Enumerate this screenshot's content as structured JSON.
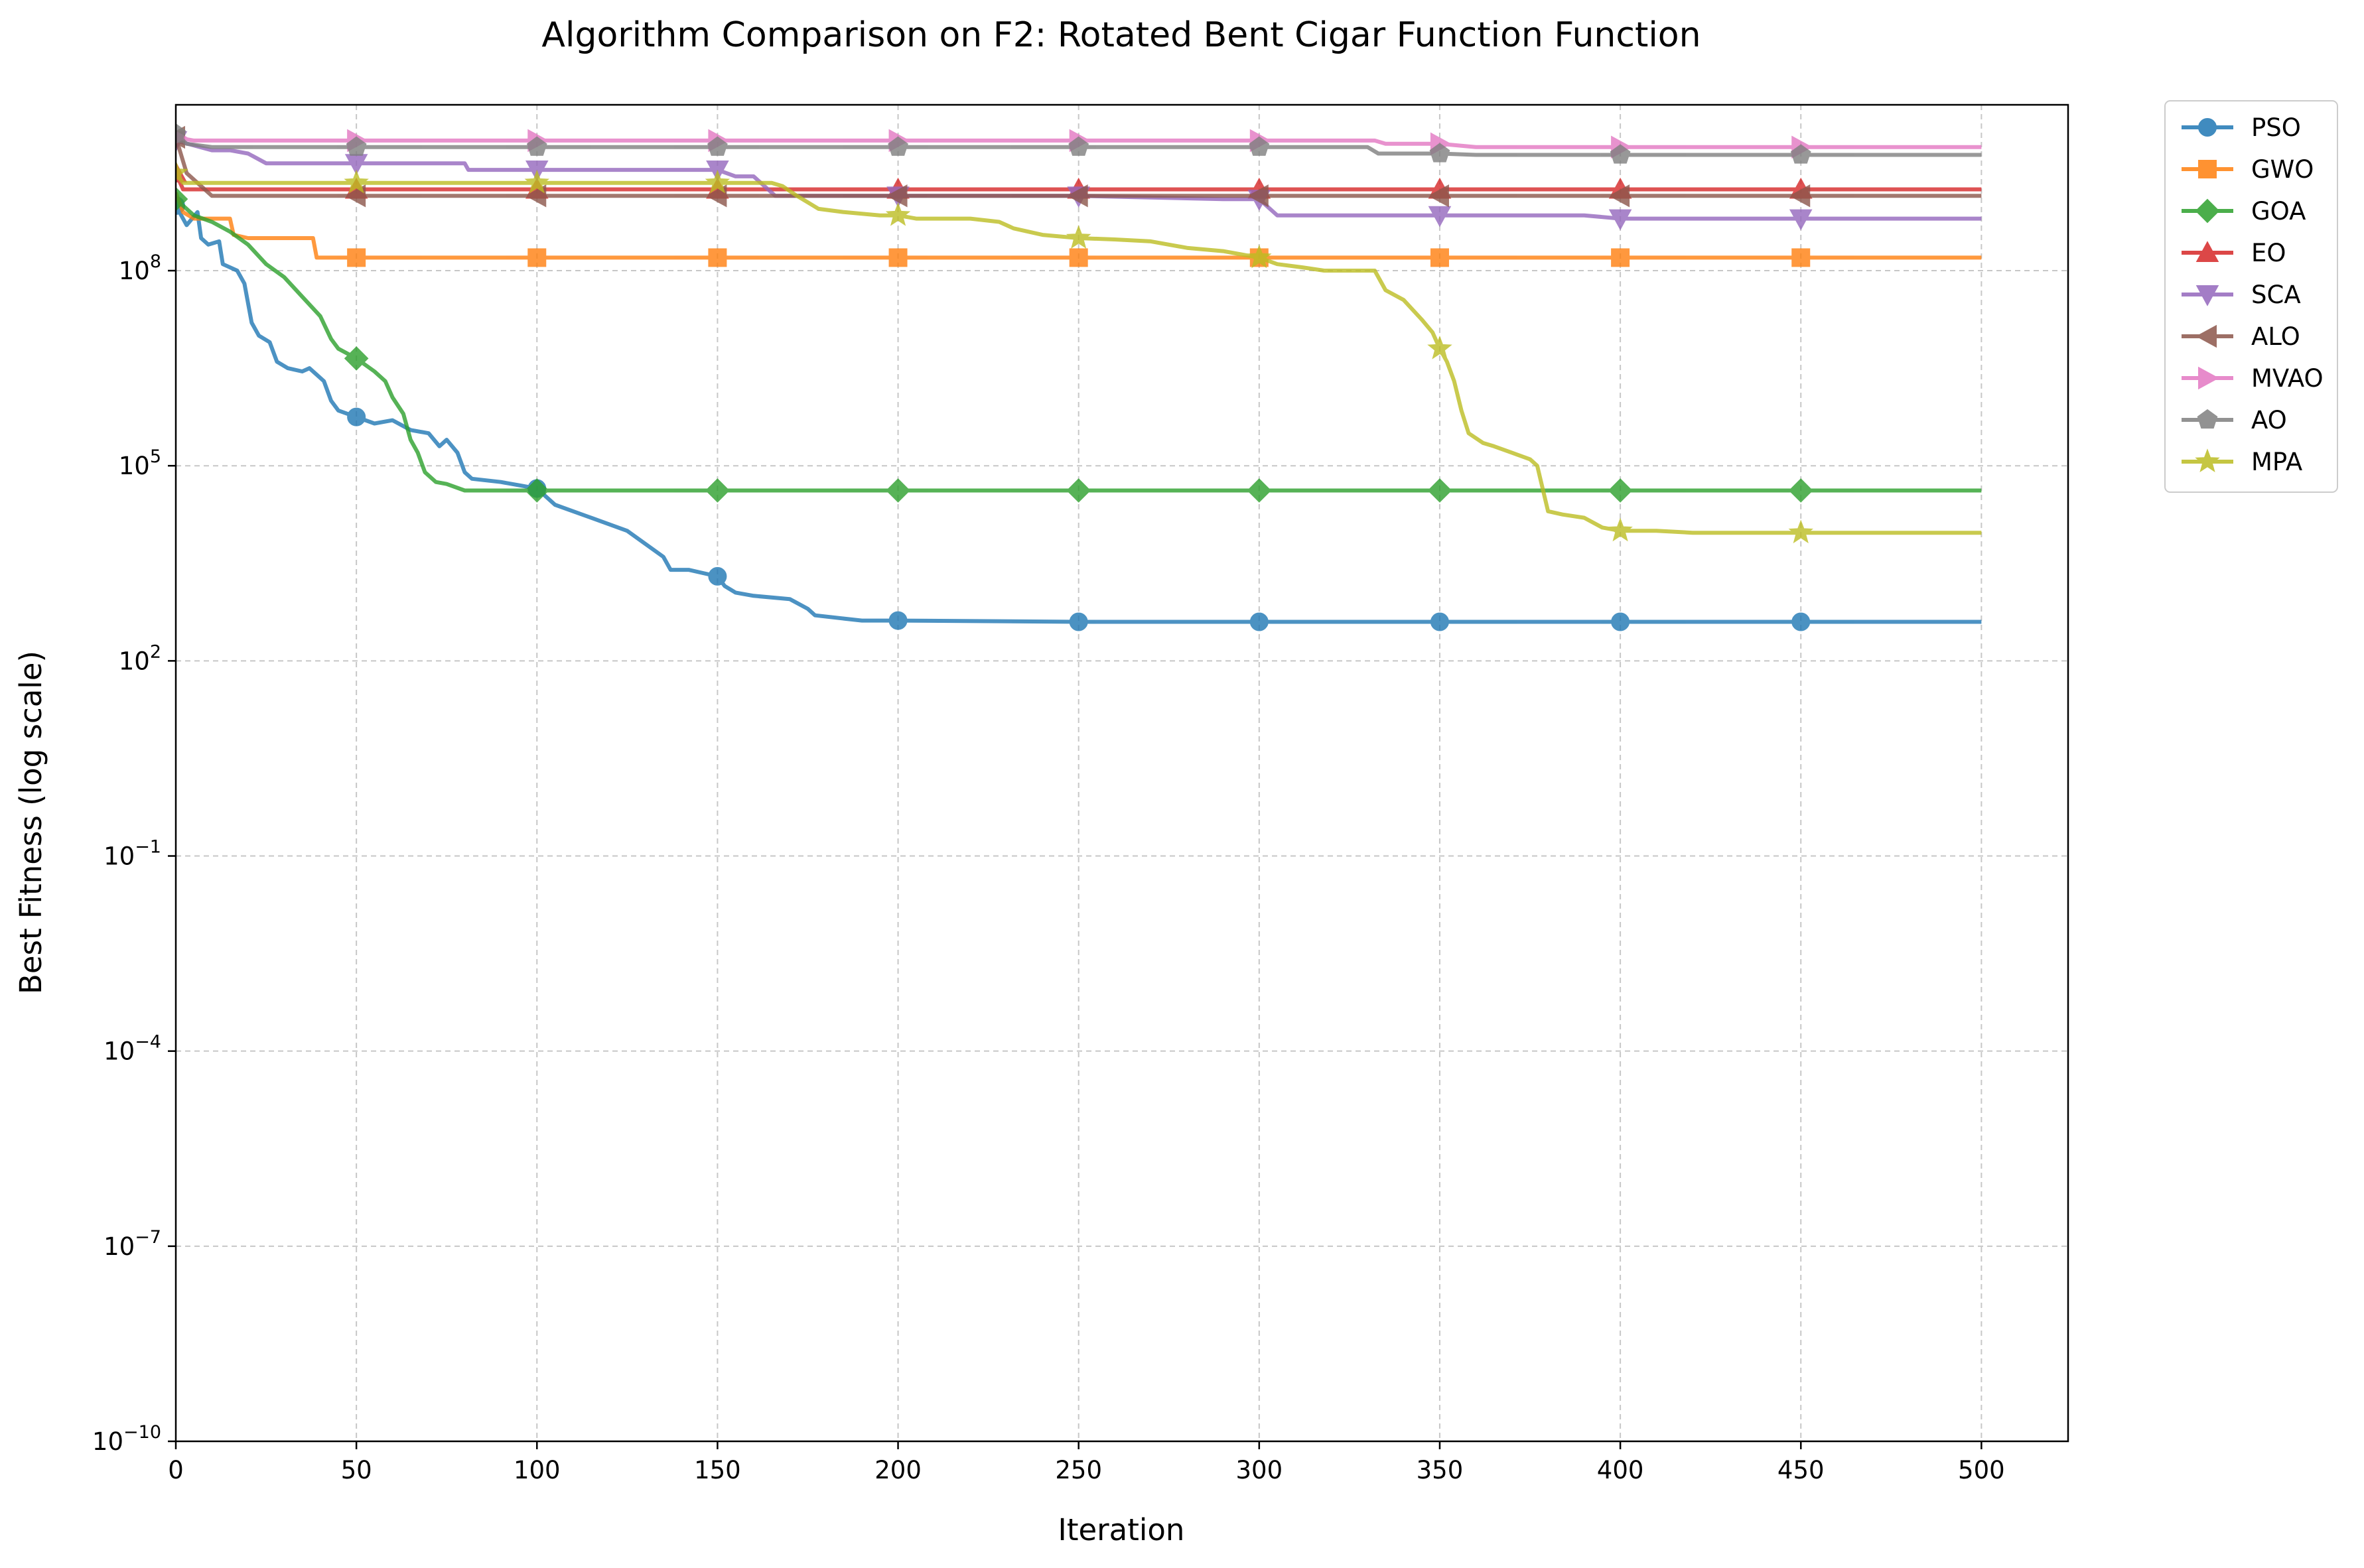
{
  "chart_data": {
    "type": "line",
    "title": "Algorithm Comparison on F2: Rotated Bent Cigar Function Function",
    "xlabel": "Iteration",
    "ylabel": "Best Fitness (log scale)",
    "xlim": [
      0,
      524
    ],
    "xticks": [
      0,
      50,
      100,
      150,
      200,
      250,
      300,
      350,
      400,
      450,
      500
    ],
    "y_scale": "log",
    "ylim_log10": [
      -10,
      10.55
    ],
    "yticks_log10": [
      -10,
      -7,
      -4,
      -1,
      2,
      5,
      8
    ],
    "grid": true,
    "legend_position": "outside-top-right",
    "series": [
      {
        "name": "PSO",
        "color": "#1f77b4",
        "marker": "circle",
        "points": [
          [
            0,
            9.0
          ],
          [
            3,
            8.7
          ],
          [
            6,
            8.9
          ],
          [
            7,
            8.5
          ],
          [
            9,
            8.4
          ],
          [
            12,
            8.45
          ],
          [
            13,
            8.1
          ],
          [
            17,
            8.0
          ],
          [
            19,
            7.8
          ],
          [
            21,
            7.2
          ],
          [
            23,
            7.0
          ],
          [
            26,
            6.9
          ],
          [
            28,
            6.6
          ],
          [
            31,
            6.5
          ],
          [
            35,
            6.45
          ],
          [
            37,
            6.5
          ],
          [
            39,
            6.4
          ],
          [
            41,
            6.3
          ],
          [
            43,
            6.0
          ],
          [
            45,
            5.85
          ],
          [
            50,
            5.75
          ],
          [
            55,
            5.65
          ],
          [
            60,
            5.7
          ],
          [
            65,
            5.55
          ],
          [
            70,
            5.5
          ],
          [
            73,
            5.3
          ],
          [
            75,
            5.4
          ],
          [
            78,
            5.2
          ],
          [
            80,
            4.9
          ],
          [
            82,
            4.8
          ],
          [
            90,
            4.75
          ],
          [
            95,
            4.7
          ],
          [
            100,
            4.65
          ],
          [
            105,
            4.4
          ],
          [
            110,
            4.3
          ],
          [
            115,
            4.2
          ],
          [
            120,
            4.1
          ],
          [
            125,
            4.0
          ],
          [
            130,
            3.8
          ],
          [
            135,
            3.6
          ],
          [
            137,
            3.4
          ],
          [
            142,
            3.4
          ],
          [
            146,
            3.35
          ],
          [
            150,
            3.3
          ],
          [
            152,
            3.15
          ],
          [
            155,
            3.05
          ],
          [
            160,
            3.0
          ],
          [
            170,
            2.95
          ],
          [
            175,
            2.8
          ],
          [
            177,
            2.7
          ],
          [
            185,
            2.65
          ],
          [
            190,
            2.62
          ],
          [
            195,
            2.62
          ],
          [
            200,
            2.62
          ],
          [
            250,
            2.6
          ],
          [
            300,
            2.6
          ],
          [
            350,
            2.6
          ],
          [
            400,
            2.6
          ],
          [
            450,
            2.6
          ],
          [
            500,
            2.6
          ]
        ],
        "marker_points": [
          [
            0,
            9.0
          ],
          [
            50,
            5.75
          ],
          [
            100,
            4.65
          ],
          [
            150,
            3.3
          ],
          [
            200,
            2.62
          ],
          [
            250,
            2.6
          ],
          [
            300,
            2.6
          ],
          [
            350,
            2.6
          ],
          [
            400,
            2.6
          ],
          [
            450,
            2.6
          ]
        ]
      },
      {
        "name": "GWO",
        "color": "#ff7f0e",
        "marker": "square",
        "points": [
          [
            0,
            9.2
          ],
          [
            2,
            8.9
          ],
          [
            5,
            8.8
          ],
          [
            10,
            8.8
          ],
          [
            15,
            8.8
          ],
          [
            16,
            8.55
          ],
          [
            20,
            8.5
          ],
          [
            30,
            8.5
          ],
          [
            38,
            8.5
          ],
          [
            39,
            8.2
          ],
          [
            40,
            8.2
          ],
          [
            100,
            8.2
          ],
          [
            200,
            8.2
          ],
          [
            300,
            8.2
          ],
          [
            400,
            8.2
          ],
          [
            500,
            8.2
          ]
        ],
        "marker_points": [
          [
            50,
            8.2
          ],
          [
            100,
            8.2
          ],
          [
            150,
            8.2
          ],
          [
            200,
            8.2
          ],
          [
            250,
            8.2
          ],
          [
            300,
            8.2
          ],
          [
            350,
            8.2
          ],
          [
            400,
            8.2
          ],
          [
            450,
            8.2
          ]
        ]
      },
      {
        "name": "GOA",
        "color": "#2ca02c",
        "marker": "diamond",
        "points": [
          [
            0,
            9.1
          ],
          [
            5,
            8.85
          ],
          [
            10,
            8.75
          ],
          [
            15,
            8.6
          ],
          [
            20,
            8.4
          ],
          [
            25,
            8.1
          ],
          [
            30,
            7.9
          ],
          [
            35,
            7.6
          ],
          [
            40,
            7.3
          ],
          [
            43,
            6.95
          ],
          [
            45,
            6.8
          ],
          [
            50,
            6.65
          ],
          [
            55,
            6.45
          ],
          [
            58,
            6.3
          ],
          [
            60,
            6.05
          ],
          [
            63,
            5.8
          ],
          [
            65,
            5.4
          ],
          [
            67,
            5.2
          ],
          [
            69,
            4.9
          ],
          [
            72,
            4.75
          ],
          [
            75,
            4.72
          ],
          [
            80,
            4.62
          ],
          [
            90,
            4.62
          ],
          [
            100,
            4.62
          ],
          [
            200,
            4.62
          ],
          [
            300,
            4.62
          ],
          [
            400,
            4.62
          ],
          [
            500,
            4.62
          ]
        ],
        "marker_points": [
          [
            0,
            9.1
          ],
          [
            50,
            6.65
          ],
          [
            100,
            4.62
          ],
          [
            150,
            4.62
          ],
          [
            200,
            4.62
          ],
          [
            250,
            4.62
          ],
          [
            300,
            4.62
          ],
          [
            350,
            4.62
          ],
          [
            400,
            4.62
          ],
          [
            450,
            4.62
          ]
        ]
      },
      {
        "name": "EO",
        "color": "#d62728",
        "marker": "triangle-up",
        "points": [
          [
            0,
            9.5
          ],
          [
            2,
            9.25
          ],
          [
            5,
            9.25
          ],
          [
            100,
            9.25
          ],
          [
            200,
            9.25
          ],
          [
            300,
            9.25
          ],
          [
            400,
            9.25
          ],
          [
            500,
            9.25
          ]
        ],
        "marker_points": [
          [
            0,
            9.5
          ],
          [
            50,
            9.25
          ],
          [
            100,
            9.25
          ],
          [
            150,
            9.25
          ],
          [
            200,
            9.25
          ],
          [
            250,
            9.25
          ],
          [
            300,
            9.25
          ],
          [
            350,
            9.25
          ],
          [
            400,
            9.25
          ],
          [
            450,
            9.25
          ]
        ]
      },
      {
        "name": "SCA",
        "color": "#9467bd",
        "marker": "triangle-down",
        "points": [
          [
            0,
            10.0
          ],
          [
            10,
            9.85
          ],
          [
            15,
            9.85
          ],
          [
            20,
            9.8
          ],
          [
            25,
            9.65
          ],
          [
            80,
            9.65
          ],
          [
            81,
            9.55
          ],
          [
            150,
            9.55
          ],
          [
            155,
            9.45
          ],
          [
            160,
            9.45
          ],
          [
            166,
            9.15
          ],
          [
            250,
            9.15
          ],
          [
            290,
            9.1
          ],
          [
            300,
            9.1
          ],
          [
            305,
            8.85
          ],
          [
            310,
            8.85
          ],
          [
            390,
            8.85
          ],
          [
            400,
            8.8
          ],
          [
            450,
            8.8
          ],
          [
            500,
            8.8
          ]
        ],
        "marker_points": [
          [
            0,
            10.0
          ],
          [
            50,
            9.65
          ],
          [
            100,
            9.55
          ],
          [
            150,
            9.55
          ],
          [
            200,
            9.15
          ],
          [
            250,
            9.15
          ],
          [
            300,
            9.1
          ],
          [
            350,
            8.85
          ],
          [
            400,
            8.8
          ],
          [
            450,
            8.8
          ]
        ]
      },
      {
        "name": "ALO",
        "color": "#8c564b",
        "marker": "triangle-left",
        "points": [
          [
            0,
            10.05
          ],
          [
            3,
            9.5
          ],
          [
            8,
            9.25
          ],
          [
            10,
            9.15
          ],
          [
            100,
            9.15
          ],
          [
            200,
            9.15
          ],
          [
            300,
            9.15
          ],
          [
            400,
            9.15
          ],
          [
            500,
            9.15
          ]
        ],
        "marker_points": [
          [
            0,
            10.05
          ],
          [
            50,
            9.15
          ],
          [
            100,
            9.15
          ],
          [
            150,
            9.15
          ],
          [
            200,
            9.15
          ],
          [
            250,
            9.15
          ],
          [
            300,
            9.15
          ],
          [
            350,
            9.15
          ],
          [
            400,
            9.15
          ],
          [
            450,
            9.15
          ]
        ]
      },
      {
        "name": "MVAO",
        "color": "#e377c2",
        "marker": "triangle-right",
        "points": [
          [
            0,
            10.05
          ],
          [
            5,
            10.0
          ],
          [
            10,
            10.0
          ],
          [
            20,
            10.0
          ],
          [
            100,
            10.0
          ],
          [
            200,
            10.0
          ],
          [
            300,
            10.0
          ],
          [
            332,
            10.0
          ],
          [
            335,
            9.95
          ],
          [
            350,
            9.95
          ],
          [
            360,
            9.9
          ],
          [
            400,
            9.9
          ],
          [
            500,
            9.9
          ]
        ],
        "marker_points": [
          [
            0,
            10.05
          ],
          [
            50,
            10.0
          ],
          [
            100,
            10.0
          ],
          [
            150,
            10.0
          ],
          [
            200,
            10.0
          ],
          [
            250,
            10.0
          ],
          [
            300,
            10.0
          ],
          [
            350,
            9.95
          ],
          [
            400,
            9.9
          ],
          [
            450,
            9.9
          ]
        ]
      },
      {
        "name": "AO",
        "color": "#7f7f7f",
        "marker": "pentagon",
        "points": [
          [
            0,
            10.1
          ],
          [
            3,
            9.95
          ],
          [
            10,
            9.9
          ],
          [
            50,
            9.9
          ],
          [
            100,
            9.9
          ],
          [
            200,
            9.9
          ],
          [
            300,
            9.9
          ],
          [
            330,
            9.9
          ],
          [
            333,
            9.8
          ],
          [
            350,
            9.8
          ],
          [
            360,
            9.78
          ],
          [
            500,
            9.78
          ]
        ],
        "marker_points": [
          [
            0,
            10.1
          ],
          [
            50,
            9.9
          ],
          [
            100,
            9.9
          ],
          [
            150,
            9.9
          ],
          [
            200,
            9.9
          ],
          [
            250,
            9.9
          ],
          [
            300,
            9.9
          ],
          [
            350,
            9.8
          ],
          [
            400,
            9.78
          ],
          [
            450,
            9.78
          ]
        ]
      },
      {
        "name": "MPA",
        "color": "#bcbd22",
        "marker": "star",
        "points": [
          [
            0,
            9.5
          ],
          [
            2,
            9.35
          ],
          [
            5,
            9.35
          ],
          [
            100,
            9.35
          ],
          [
            160,
            9.35
          ],
          [
            165,
            9.35
          ],
          [
            168,
            9.3
          ],
          [
            172,
            9.15
          ],
          [
            175,
            9.05
          ],
          [
            178,
            8.95
          ],
          [
            185,
            8.9
          ],
          [
            195,
            8.85
          ],
          [
            200,
            8.85
          ],
          [
            205,
            8.8
          ],
          [
            220,
            8.8
          ],
          [
            228,
            8.75
          ],
          [
            232,
            8.65
          ],
          [
            240,
            8.55
          ],
          [
            250,
            8.5
          ],
          [
            260,
            8.48
          ],
          [
            270,
            8.45
          ],
          [
            280,
            8.35
          ],
          [
            290,
            8.3
          ],
          [
            295,
            8.25
          ],
          [
            300,
            8.2
          ],
          [
            305,
            8.1
          ],
          [
            312,
            8.05
          ],
          [
            318,
            8.0
          ],
          [
            332,
            8.0
          ],
          [
            335,
            7.7
          ],
          [
            340,
            7.55
          ],
          [
            345,
            7.25
          ],
          [
            348,
            7.05
          ],
          [
            350,
            6.8
          ],
          [
            352,
            6.6
          ],
          [
            354,
            6.3
          ],
          [
            356,
            5.85
          ],
          [
            358,
            5.5
          ],
          [
            362,
            5.35
          ],
          [
            365,
            5.3
          ],
          [
            370,
            5.2
          ],
          [
            375,
            5.1
          ],
          [
            377,
            5.0
          ],
          [
            380,
            4.3
          ],
          [
            384,
            4.25
          ],
          [
            390,
            4.2
          ],
          [
            395,
            4.05
          ],
          [
            400,
            4.0
          ],
          [
            410,
            4.0
          ],
          [
            420,
            3.97
          ],
          [
            450,
            3.97
          ],
          [
            500,
            3.97
          ]
        ],
        "marker_points": [
          [
            0,
            9.5
          ],
          [
            50,
            9.35
          ],
          [
            100,
            9.35
          ],
          [
            150,
            9.35
          ],
          [
            200,
            8.85
          ],
          [
            250,
            8.5
          ],
          [
            300,
            8.2
          ],
          [
            350,
            6.8
          ],
          [
            400,
            4.0
          ],
          [
            450,
            3.97
          ]
        ]
      }
    ]
  }
}
